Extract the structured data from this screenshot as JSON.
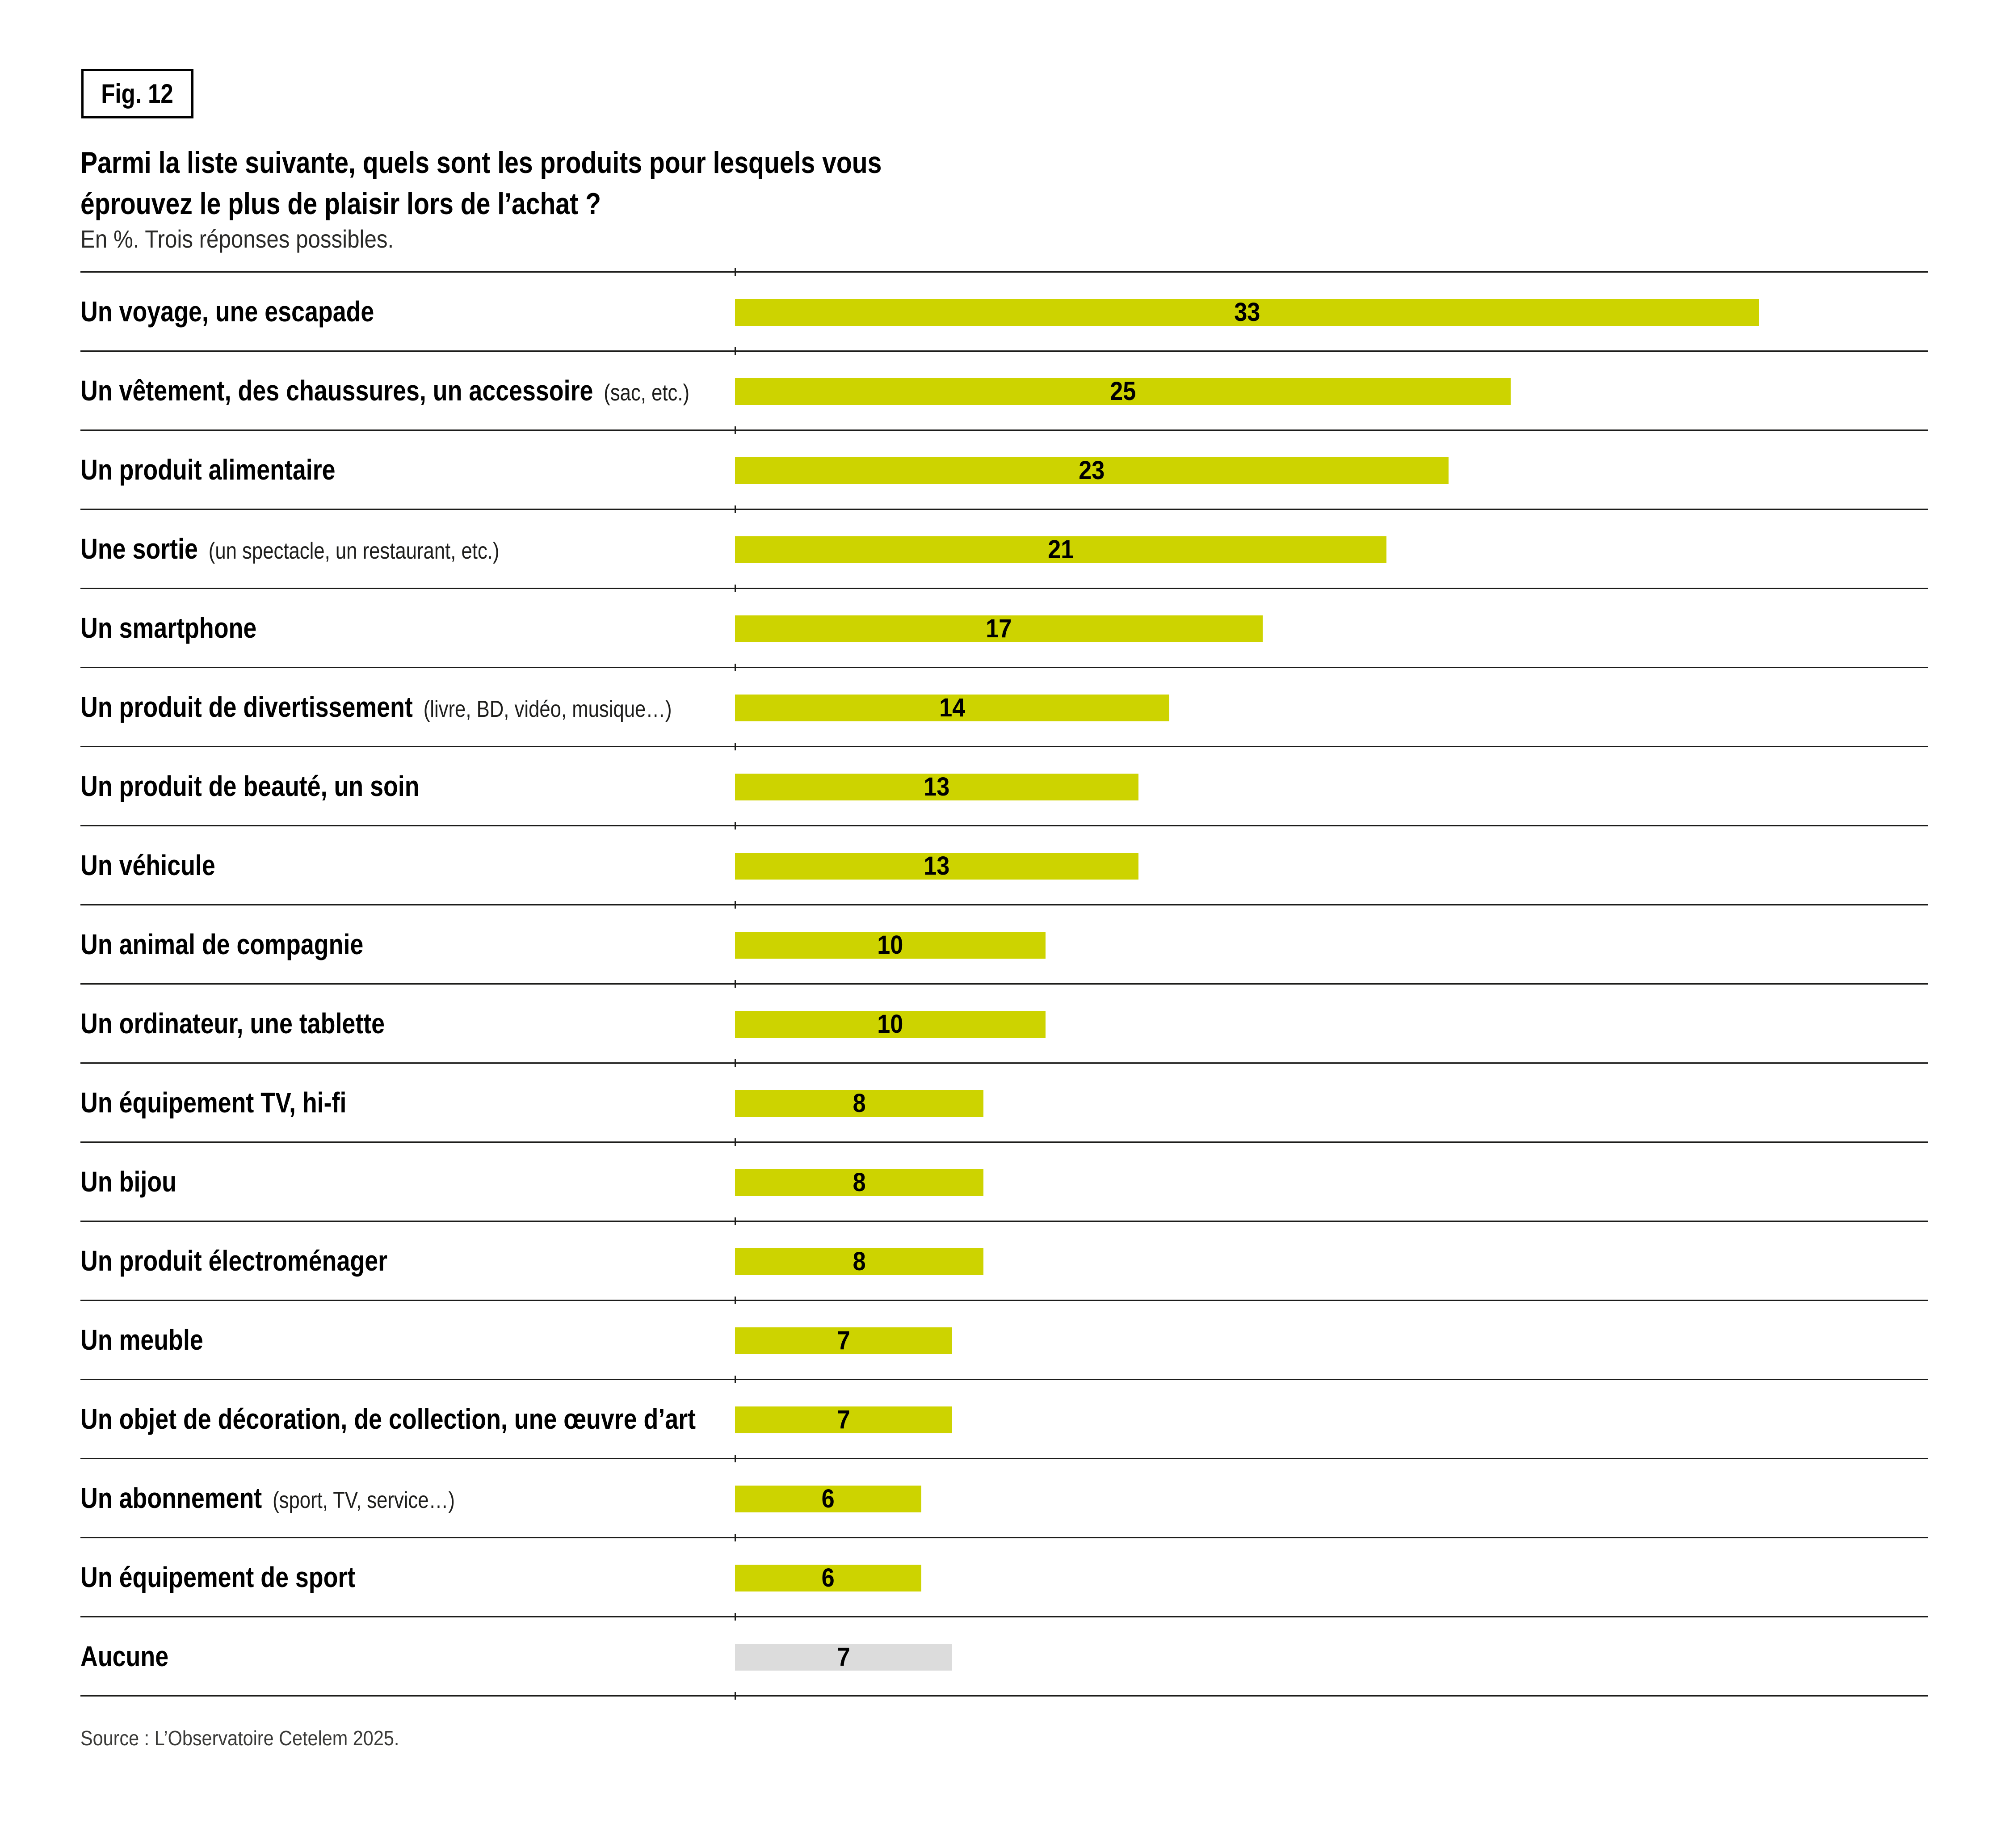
{
  "fig_label": "Fig. 12",
  "title": {
    "lines": [
      "Parmi la liste suivante, quels sont les produits pour lesquels vous",
      "éprouvez le plus de plaisir lors de l’achat ?"
    ],
    "subtitle": "En %. Trois réponses possibles."
  },
  "source": "Source : L’Observatoire Cetelem 2025.",
  "colors": {
    "bar_highlight": "#cdd300",
    "bar_muted": "#dcdcdc",
    "rule": "#1d1d1b",
    "text": "#000000",
    "subtext": "#3a3a38"
  },
  "chart_data": {
    "type": "bar",
    "orientation": "horizontal",
    "unit": "%",
    "title": "Parmi la liste suivante, quels sont les produits pour lesquels vous éprouvez le plus de plaisir lors de l’achat ?",
    "subtitle": "En %. Trois réponses possibles.",
    "xlim": [
      0,
      33
    ],
    "grid": false,
    "legend": null,
    "categories": [
      "Un voyage, une escapade",
      "Un vêtement, des chaussures, un accessoire (sac, etc.)",
      "Un produit alimentaire",
      "Une sortie (un spectacle, un restaurant, etc.)",
      "Un smartphone",
      "Un produit de divertissement (livre, BD, vidéo, musique…)",
      "Un produit de beauté, un soin",
      "Un véhicule",
      "Un animal de compagnie",
      "Un ordinateur, une tablette",
      "Un équipement TV, hi-fi",
      "Un bijou",
      "Un produit électroménager",
      "Un meuble",
      "Un objet de décoration, de collection, une œuvre d’art",
      "Un abonnement (sport, TV, service…)",
      "Un équipement de sport",
      "Aucune"
    ],
    "values": [
      33,
      25,
      23,
      21,
      17,
      14,
      13,
      13,
      10,
      10,
      8,
      8,
      8,
      7,
      7,
      6,
      6,
      7
    ],
    "rows": [
      {
        "label": "Un voyage, une escapade",
        "note": "",
        "value": 33,
        "muted": false
      },
      {
        "label": "Un vêtement, des chaussures, un accessoire",
        "note": "(sac, etc.)",
        "value": 25,
        "muted": false
      },
      {
        "label": "Un produit alimentaire",
        "note": "",
        "value": 23,
        "muted": false
      },
      {
        "label": "Une sortie",
        "note": "(un spectacle, un restaurant, etc.)",
        "value": 21,
        "muted": false
      },
      {
        "label": "Un smartphone",
        "note": "",
        "value": 17,
        "muted": false
      },
      {
        "label": "Un produit de divertissement",
        "note": "(livre, BD, vidéo, musique…)",
        "value": 14,
        "muted": false
      },
      {
        "label": "Un produit de beauté, un soin",
        "note": "",
        "value": 13,
        "muted": false
      },
      {
        "label": "Un véhicule",
        "note": "",
        "value": 13,
        "muted": false
      },
      {
        "label": "Un animal de compagnie",
        "note": "",
        "value": 10,
        "muted": false
      },
      {
        "label": "Un ordinateur, une tablette",
        "note": "",
        "value": 10,
        "muted": false
      },
      {
        "label": "Un équipement TV, hi-fi",
        "note": "",
        "value": 8,
        "muted": false
      },
      {
        "label": "Un bijou",
        "note": "",
        "value": 8,
        "muted": false
      },
      {
        "label": "Un produit électroménager",
        "note": "",
        "value": 8,
        "muted": false
      },
      {
        "label": "Un meuble",
        "note": "",
        "value": 7,
        "muted": false
      },
      {
        "label": "Un objet de décoration, de collection, une œuvre d’art",
        "note": "",
        "value": 7,
        "muted": false
      },
      {
        "label": "Un abonnement",
        "note": "(sport, TV, service…)",
        "value": 6,
        "muted": false
      },
      {
        "label": "Un équipement de sport",
        "note": "",
        "value": 6,
        "muted": false
      },
      {
        "label": "Aucune",
        "note": "",
        "value": 7,
        "muted": true
      }
    ]
  }
}
